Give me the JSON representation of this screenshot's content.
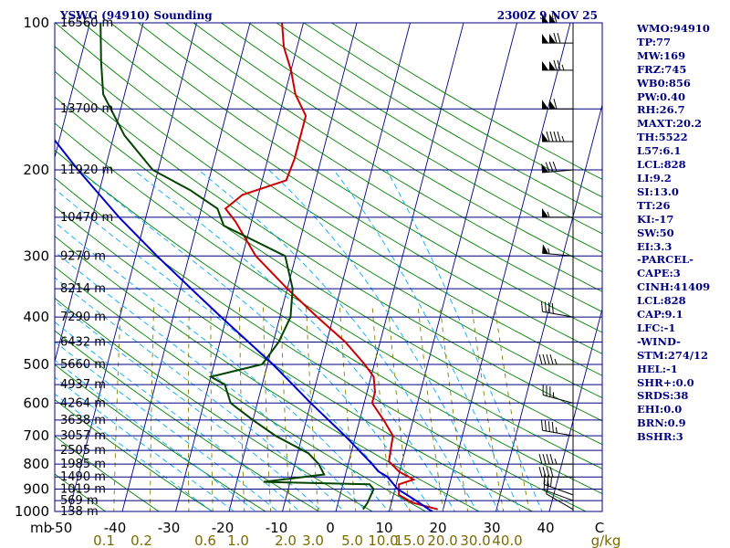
{
  "header": {
    "station": "YSWG (94910) Sounding",
    "time": "2300Z  9 NOV 25"
  },
  "colors": {
    "isobar": "#000080",
    "isotherm": "#000080",
    "dry_adiabat": "#008000",
    "moist_adiabat": "#00aaff",
    "mixing_ratio": "#808000",
    "temperature": "#cc0000",
    "dewpoint": "#004400",
    "parcel": "#0000cc",
    "barbs": "#000000"
  },
  "chart_data": {
    "type": "line",
    "title": "YSWG (94910) Sounding",
    "diagram": "skew-T log-P",
    "ylabel": "mb",
    "pressure_ticks": [
      "100",
      "200",
      "300",
      "400",
      "500",
      "600",
      "700",
      "800",
      "900",
      "1000"
    ],
    "temperature_ticks": [
      "-50",
      "-40",
      "-30",
      "-20",
      "-10",
      "0",
      "10",
      "20",
      "30",
      "40",
      "C"
    ],
    "mixing_ratio_ticks": [
      "0.1",
      "0.2",
      "0.6",
      "1.0",
      "2.0",
      "3.0",
      "5.0",
      "10.0",
      "15.0",
      "20.0",
      "30.0",
      "40.0",
      "g/kg"
    ],
    "height_labels": [
      {
        "p": 100,
        "text": "16560 m"
      },
      {
        "p": 150,
        "text": "13700 m"
      },
      {
        "p": 200,
        "text": "11920 m"
      },
      {
        "p": 250,
        "text": "10470 m"
      },
      {
        "p": 300,
        "text": "9270 m"
      },
      {
        "p": 350,
        "text": "8214 m"
      },
      {
        "p": 400,
        "text": "7290 m"
      },
      {
        "p": 450,
        "text": "6432 m"
      },
      {
        "p": 500,
        "text": "5660 m"
      },
      {
        "p": 550,
        "text": "4937 m"
      },
      {
        "p": 600,
        "text": "4264 m"
      },
      {
        "p": 650,
        "text": "3638 m"
      },
      {
        "p": 700,
        "text": "3057 m"
      },
      {
        "p": 750,
        "text": "2505 m"
      },
      {
        "p": 800,
        "text": "1985 m"
      },
      {
        "p": 850,
        "text": "1490 m"
      },
      {
        "p": 900,
        "text": "1019 m"
      },
      {
        "p": 950,
        "text": "569 m"
      },
      {
        "p": 1000,
        "text": "138 m"
      }
    ],
    "series": [
      {
        "name": "temperature",
        "points": [
          [
            990,
            19.0
          ],
          [
            960,
            14.0
          ],
          [
            925,
            11.0
          ],
          [
            880,
            10.5
          ],
          [
            860,
            13.0
          ],
          [
            830,
            10.0
          ],
          [
            790,
            7.5
          ],
          [
            700,
            7.0
          ],
          [
            650,
            4.5
          ],
          [
            600,
            1.5
          ],
          [
            570,
            1.5
          ],
          [
            530,
            0.5
          ],
          [
            500,
            -1.8
          ],
          [
            450,
            -6.5
          ],
          [
            400,
            -13.0
          ],
          [
            350,
            -20.0
          ],
          [
            300,
            -27.5
          ],
          [
            255,
            -33.0
          ],
          [
            240,
            -35.5
          ],
          [
            225,
            -33.0
          ],
          [
            210,
            -25.5
          ],
          [
            190,
            -25.0
          ],
          [
            170,
            -25.0
          ],
          [
            155,
            -25.0
          ],
          [
            140,
            -28.0
          ],
          [
            125,
            -30.0
          ],
          [
            112,
            -32.5
          ],
          [
            100,
            -34.0
          ]
        ]
      },
      {
        "name": "dewpoint",
        "points": [
          [
            990,
            5.0
          ],
          [
            960,
            5.5
          ],
          [
            900,
            6.0
          ],
          [
            880,
            5.0
          ],
          [
            870,
            -15.0
          ],
          [
            840,
            -4.0
          ],
          [
            800,
            -5.5
          ],
          [
            760,
            -8.0
          ],
          [
            700,
            -15.0
          ],
          [
            650,
            -20.0
          ],
          [
            600,
            -25.0
          ],
          [
            550,
            -27.0
          ],
          [
            530,
            -30.0
          ],
          [
            500,
            -21.0
          ],
          [
            450,
            -19.0
          ],
          [
            400,
            -18.0
          ],
          [
            350,
            -19.0
          ],
          [
            300,
            -22.0
          ],
          [
            260,
            -35.0
          ],
          [
            240,
            -37.0
          ],
          [
            220,
            -43.0
          ],
          [
            200,
            -51.0
          ],
          [
            170,
            -58.0
          ],
          [
            140,
            -64.0
          ],
          [
            120,
            -66.0
          ],
          [
            100,
            -68.0
          ]
        ]
      },
      {
        "name": "parcel",
        "points": [
          [
            1000,
            18.0
          ],
          [
            950,
            14.5
          ],
          [
            900,
            10.5
          ],
          [
            850,
            8.0
          ],
          [
            828,
            6.0
          ],
          [
            800,
            4.5
          ],
          [
            700,
            -2.0
          ],
          [
            600,
            -10.0
          ],
          [
            500,
            -19.0
          ],
          [
            400,
            -31.0
          ],
          [
            350,
            -38.0
          ],
          [
            300,
            -46.0
          ],
          [
            250,
            -55.0
          ],
          [
            200,
            -65.0
          ],
          [
            150,
            -77.0
          ],
          [
            120,
            -85.0
          ]
        ]
      }
    ],
    "wind_barbs": [
      {
        "p": 990,
        "dir": 300,
        "spd": 10
      },
      {
        "p": 950,
        "dir": 290,
        "spd": 20
      },
      {
        "p": 925,
        "dir": 290,
        "spd": 30
      },
      {
        "p": 850,
        "dir": 270,
        "spd": 40
      },
      {
        "p": 800,
        "dir": 270,
        "spd": 45
      },
      {
        "p": 700,
        "dir": 280,
        "spd": 45
      },
      {
        "p": 600,
        "dir": 285,
        "spd": 35
      },
      {
        "p": 500,
        "dir": 270,
        "spd": 45
      },
      {
        "p": 400,
        "dir": 280,
        "spd": 40
      },
      {
        "p": 300,
        "dir": 275,
        "spd": 55
      },
      {
        "p": 250,
        "dir": 270,
        "spd": 55
      },
      {
        "p": 200,
        "dir": 265,
        "spd": 80
      },
      {
        "p": 175,
        "dir": 270,
        "spd": 95
      },
      {
        "p": 150,
        "dir": 270,
        "spd": 110
      },
      {
        "p": 125,
        "dir": 270,
        "spd": 125
      },
      {
        "p": 110,
        "dir": 270,
        "spd": 120
      },
      {
        "p": 100,
        "dir": 270,
        "spd": 110
      }
    ]
  },
  "indices": [
    "WMO:94910",
    "TP:77",
    "MW:169",
    "FRZ:745",
    "WB0:856",
    "PW:0.40",
    "RH:26.7",
    "MAXT:20.2",
    "TH:5522",
    "L57:6.1",
    "LCL:828",
    "LI:9.2",
    "SI:13.0",
    "TT:26",
    "KI:-17",
    "SW:50",
    "EI:3.3",
    "-PARCEL-",
    "CAPE:3",
    "CINH:41409",
    "LCL:828",
    "CAP:9.1",
    "LFC:-1",
    "-WIND-",
    "STM:274/12",
    "HEL:-1",
    "SHR+:0.0",
    "SRDS:38",
    "EHI:0.0",
    "BRN:0.9",
    "BSHR:3"
  ]
}
